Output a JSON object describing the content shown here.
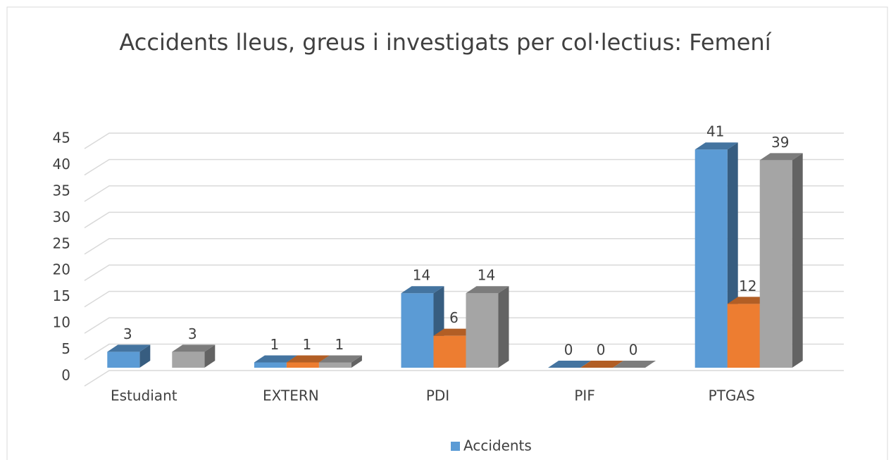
{
  "chart_data": {
    "type": "bar3d",
    "title": "Accidents lleus, greus i investigats per col·lectius: Femení",
    "categories": [
      "Estudiant",
      "EXTERN",
      "PDI",
      "PIF",
      "PTGAS"
    ],
    "series": [
      {
        "name": "Accidents",
        "color": "#5b9bd5",
        "values": [
          3,
          1,
          14,
          0,
          41
        ]
      },
      {
        "color": "#ed7d31",
        "values": [
          null,
          1,
          6,
          0,
          12
        ]
      },
      {
        "color": "#a5a5a5",
        "values": [
          3,
          1,
          14,
          0,
          39
        ]
      }
    ],
    "ylim": [
      0,
      45
    ],
    "yticks": [
      0,
      5,
      10,
      15,
      20,
      25,
      30,
      35,
      40,
      45
    ],
    "grid": true,
    "legend": "bottom"
  }
}
